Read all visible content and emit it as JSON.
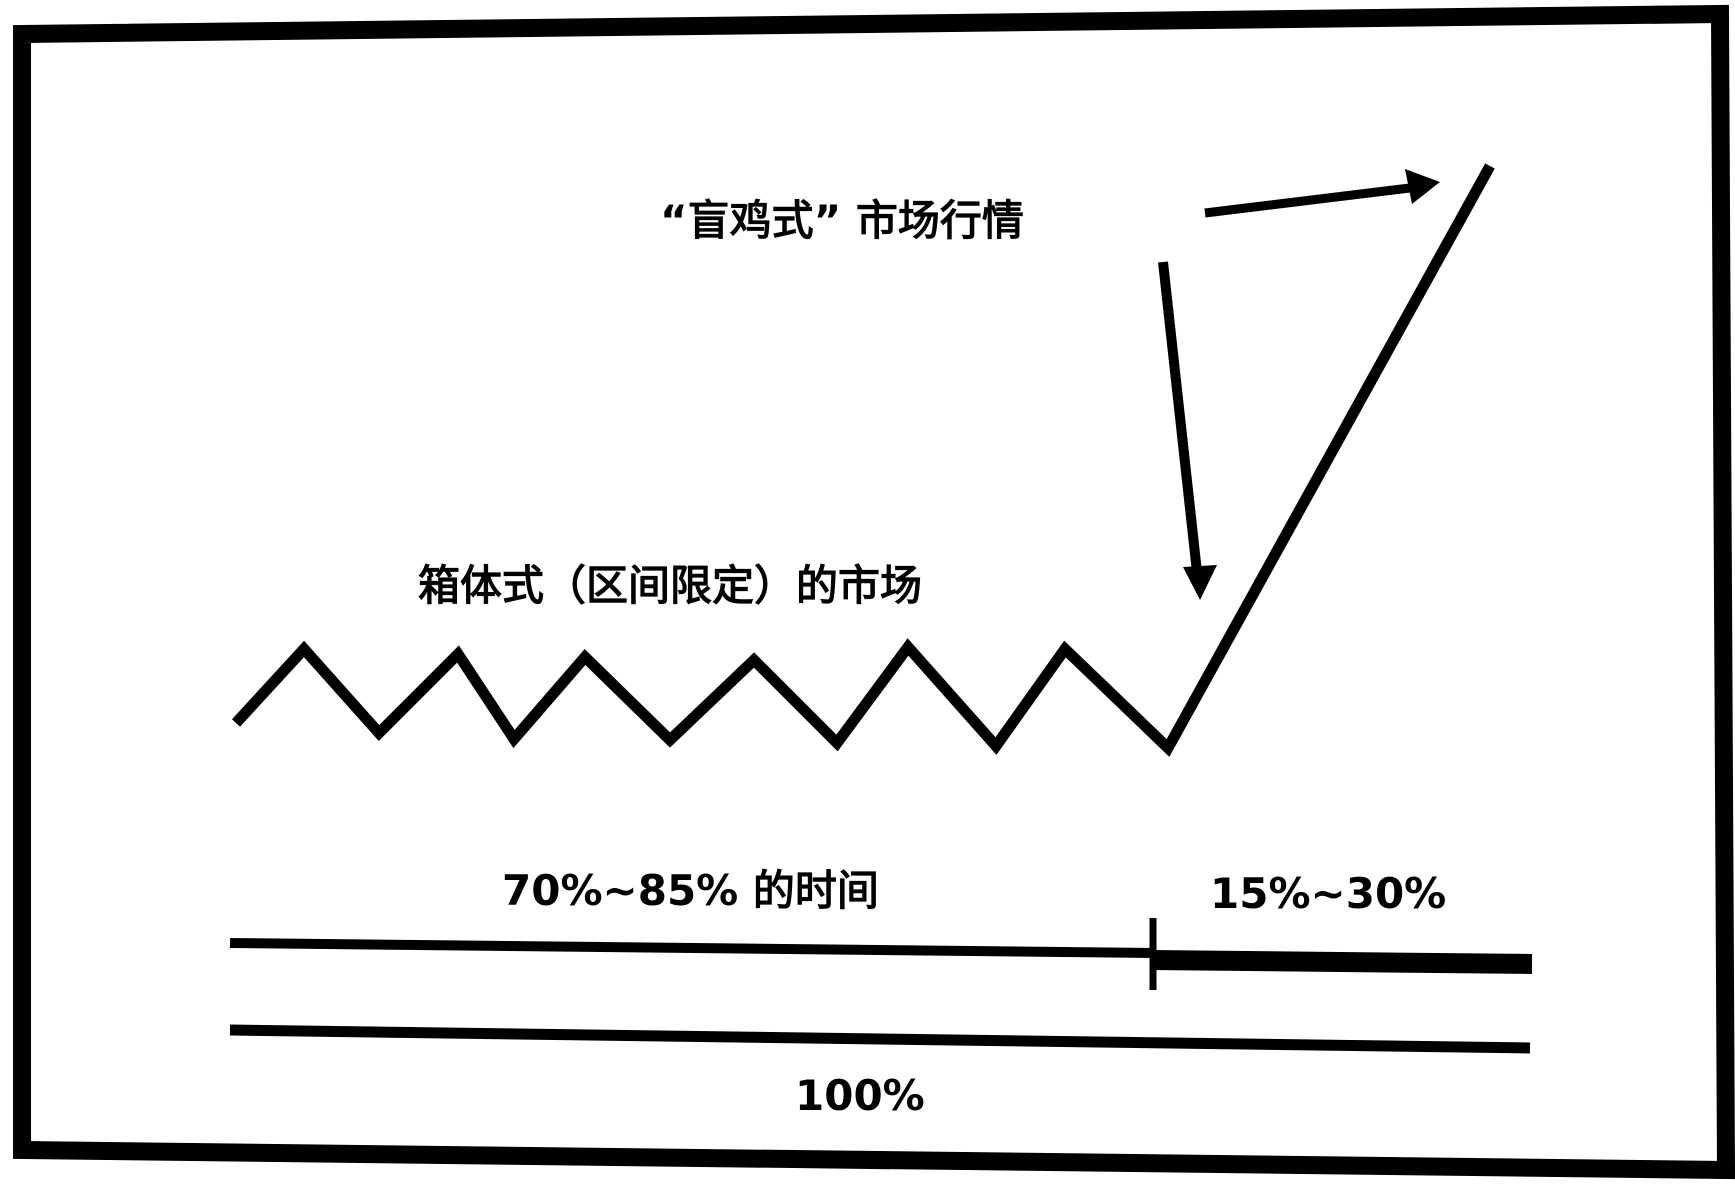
{
  "labels": {
    "trend_market": "“盲鸡式” 市场行情",
    "box_market": "箱体式（区间限定）的市场",
    "range_time": "70%~85% 的时间",
    "trend_time": "15%~30%",
    "total_time": "100%"
  },
  "colors": {
    "ink": "#000000",
    "background": "#ffffff"
  }
}
